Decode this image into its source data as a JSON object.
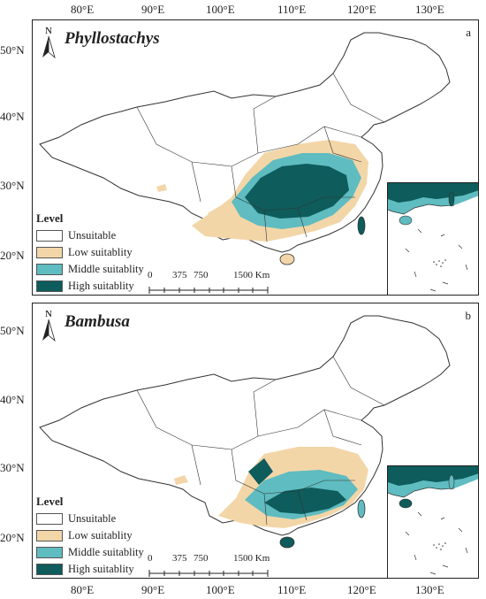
{
  "axes": {
    "lon_labels": [
      "80°E",
      "90°E",
      "100°E",
      "110°E",
      "120°E",
      "130°E"
    ],
    "lat_labels_a": [
      "50°N",
      "40°N",
      "30°N",
      "20°N"
    ],
    "lat_labels_b": [
      "50°N",
      "40°N",
      "30°N",
      "20°N"
    ]
  },
  "panels": [
    {
      "id": "a",
      "title": "Phyllostachys",
      "letter": "a"
    },
    {
      "id": "b",
      "title": "Bambusa",
      "letter": "b"
    }
  ],
  "north_label": "N",
  "legend": {
    "title": "Level",
    "items": [
      {
        "label": "Unsuitable",
        "color": "#ffffff"
      },
      {
        "label": "Low suitablity",
        "color": "#f3d6a8"
      },
      {
        "label": "Middle suitablity",
        "color": "#5fbcc0"
      },
      {
        "label": "High suitablity",
        "color": "#0e5c5c"
      }
    ]
  },
  "scale_bar": {
    "labels": [
      "0",
      "375",
      "750",
      "1500 Km"
    ]
  },
  "colors": {
    "high": "#0e5c5c",
    "middle": "#5fbcc0",
    "low": "#f3d6a8",
    "border": "#333333"
  }
}
